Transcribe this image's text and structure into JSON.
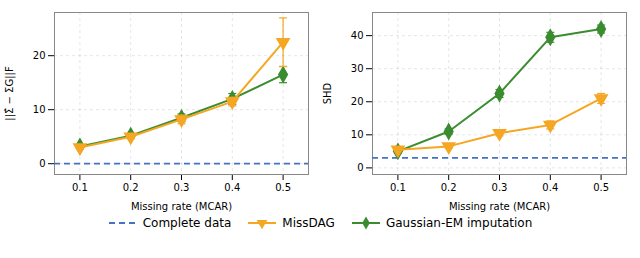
{
  "chart_data": [
    {
      "type": "line",
      "xlabel": "Missing rate (MCAR)",
      "ylabel": "||Σ̂ − ΣG||F",
      "x": [
        0.1,
        0.2,
        0.3,
        0.4,
        0.5
      ],
      "xlim": [
        0.05,
        0.55
      ],
      "xticks": [
        0.1,
        0.2,
        0.3,
        0.4,
        0.5
      ],
      "ylim": [
        -2,
        28
      ],
      "yticks": [
        0,
        10,
        20
      ],
      "grid": true,
      "legend": "bottom",
      "series": [
        {
          "name": "Complete data",
          "type": "hline",
          "line_style": "dashed",
          "color": "#4472C4",
          "y": 0.0
        },
        {
          "name": "MissDAG",
          "type": "line",
          "marker": "triangle_down",
          "line_style": "solid",
          "color": "#F5A623",
          "values": [
            3.0,
            5.0,
            8.2,
            11.5,
            22.5
          ],
          "errors": [
            0.3,
            0.4,
            0.8,
            0.8,
            4.5
          ]
        },
        {
          "name": "Gaussian-EM imputation",
          "type": "line",
          "marker": "diamond",
          "line_style": "solid",
          "color": "#3A8C2F",
          "values": [
            3.2,
            5.2,
            8.5,
            12.0,
            16.5
          ],
          "errors": [
            0.2,
            0.3,
            0.7,
            1.0,
            1.5
          ]
        }
      ]
    },
    {
      "type": "line",
      "xlabel": "Missing rate (MCAR)",
      "ylabel": "SHD",
      "x": [
        0.1,
        0.2,
        0.3,
        0.4,
        0.5
      ],
      "xlim": [
        0.05,
        0.55
      ],
      "xticks": [
        0.1,
        0.2,
        0.3,
        0.4,
        0.5
      ],
      "ylim": [
        -2,
        47
      ],
      "yticks": [
        0,
        10,
        20,
        30,
        40
      ],
      "grid": true,
      "legend": "bottom",
      "series": [
        {
          "name": "Complete data",
          "type": "hline",
          "line_style": "dashed",
          "color": "#4472C4",
          "y": 3.0
        },
        {
          "name": "MissDAG",
          "type": "line",
          "marker": "triangle_down",
          "line_style": "solid",
          "color": "#F5A623",
          "values": [
            5.5,
            6.5,
            10.5,
            13.0,
            21.0
          ],
          "errors": [
            0.4,
            0.4,
            0.8,
            1.2,
            1.5
          ]
        },
        {
          "name": "Gaussian-EM imputation",
          "type": "line",
          "marker": "diamond",
          "line_style": "solid",
          "color": "#3A8C2F",
          "values": [
            5.0,
            11.0,
            22.5,
            39.5,
            42.0
          ],
          "errors": [
            0.5,
            0.8,
            1.2,
            1.5,
            1.2
          ]
        }
      ]
    }
  ]
}
